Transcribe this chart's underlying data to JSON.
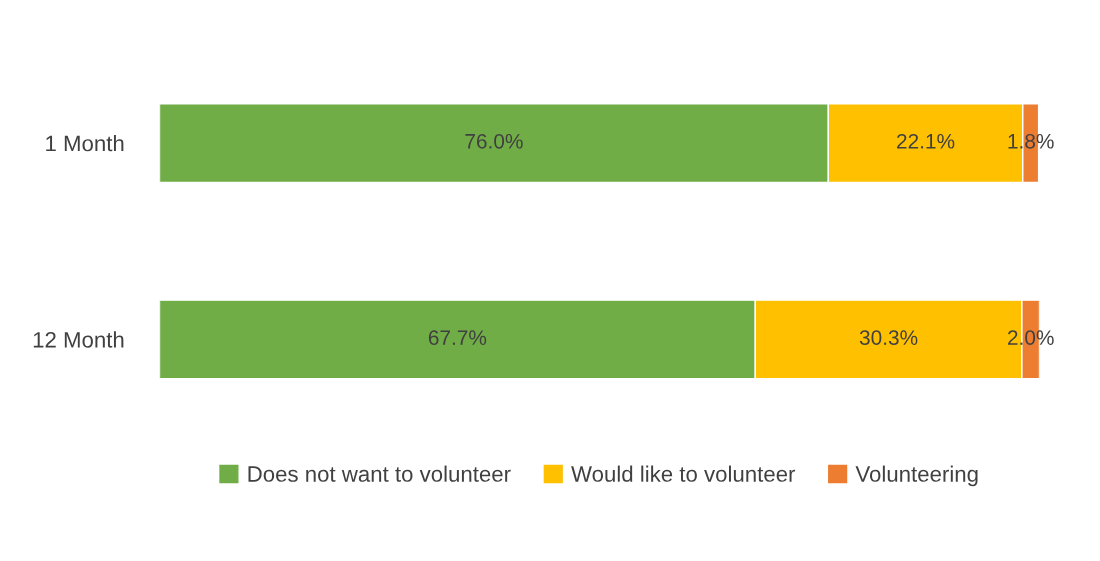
{
  "chart_data": {
    "type": "bar",
    "orientation": "horizontal",
    "stacked": true,
    "xlim": [
      0,
      100
    ],
    "tick_labels": "y",
    "grid": false,
    "legend": "bottom",
    "categories": [
      "1 Month",
      "12 Month"
    ],
    "series": [
      {
        "name": "Does not want to volunteer",
        "color": "#70ad47",
        "values": [
          76.0,
          67.7
        ],
        "value_labels": [
          "76.0%",
          "67.7%"
        ]
      },
      {
        "name": "Would like to volunteer",
        "color": "#ffc000",
        "values": [
          22.1,
          30.3
        ],
        "value_labels": [
          "22.1%",
          "30.3%"
        ]
      },
      {
        "name": "Volunteering",
        "color": "#ed7d31",
        "values": [
          1.8,
          2.0
        ],
        "value_labels": [
          "1.8%",
          "2.0%"
        ]
      }
    ]
  }
}
